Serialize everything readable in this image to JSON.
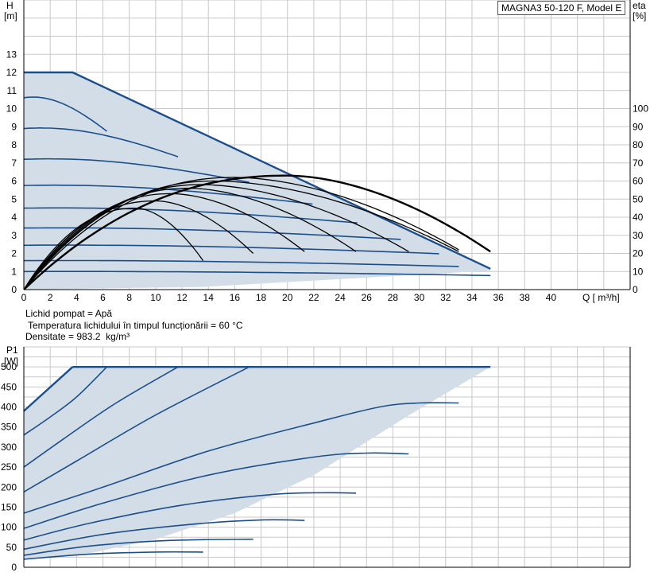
{
  "title": "MAGNA3 50-120 F, Model E",
  "info": {
    "liquid": "Lichid pompat = Apă",
    "temperature": "Temperatura lichidului în timpul funcționării = 60 °C",
    "density": "Densitate = 983.2  kg/m³"
  },
  "colors": {
    "fill": "#d3dde8",
    "curve": "#1c4f8a",
    "eta": "#000000",
    "grid": "#c8c8c8"
  },
  "chart_data": [
    {
      "type": "line",
      "name": "head-eta",
      "xlabel": "Q [ m³/h]",
      "ylabel_top": "H",
      "ylabel_unit": "[m]",
      "y2label_top": "eta",
      "y2label_unit": "[%]",
      "xlim": [
        0,
        46
      ],
      "ylim": [
        0,
        16
      ],
      "y2lim": [
        0,
        160
      ],
      "x_ticks": [
        0,
        2,
        4,
        6,
        8,
        10,
        12,
        14,
        16,
        18,
        20,
        22,
        24,
        26,
        28,
        30,
        32,
        34,
        36,
        38,
        40
      ],
      "y_ticks": [
        0,
        1,
        2,
        3,
        4,
        5,
        6,
        7,
        8,
        9,
        10,
        11,
        12,
        13
      ],
      "y2_ticks": [
        0,
        10,
        20,
        30,
        40,
        50,
        60,
        70,
        80,
        90,
        100
      ],
      "envelope": [
        [
          0,
          12
        ],
        [
          3.7,
          12
        ],
        [
          35.4,
          1.15
        ],
        [
          35.4,
          1.05
        ],
        [
          13.6,
          0.15
        ],
        [
          0,
          0
        ]
      ],
      "head_curves": [
        {
          "h0": 12.0,
          "qmax": 3.7
        },
        {
          "h0": 10.6,
          "qmax": 6.3
        },
        {
          "h0": 8.9,
          "qmax": 11.7
        },
        {
          "h0": 7.2,
          "qmax": 17.1
        },
        {
          "h0": 5.75,
          "qmax": 21.9
        },
        {
          "h0": 4.5,
          "qmax": 25.3
        },
        {
          "h0": 3.4,
          "qmax": 28.6
        },
        {
          "h0": 2.45,
          "qmax": 31.5
        },
        {
          "h0": 1.6,
          "qmax": 33.0
        },
        {
          "h0": 1.0,
          "qmax": 35.4
        }
      ],
      "eta_curves": [
        {
          "peak_q": 8.5,
          "peak": 45,
          "end_q": 13.6,
          "end": 16
        },
        {
          "peak_q": 10.0,
          "peak": 49,
          "end_q": 17.4,
          "end": 20
        },
        {
          "peak_q": 11.2,
          "peak": 53,
          "end_q": 21.3,
          "end": 21
        },
        {
          "peak_q": 12.5,
          "peak": 56,
          "end_q": 25.2,
          "end": 21
        },
        {
          "peak_q": 13.5,
          "peak": 58,
          "end_q": 29.2,
          "end": 21
        },
        {
          "peak_q": 14.5,
          "peak": 60,
          "end_q": 33.0,
          "end": 21
        },
        {
          "peak_q": 16.0,
          "peak": 62,
          "end_q": 33.0,
          "end": 22
        },
        {
          "peak_q": 20.0,
          "peak": 63,
          "end_q": 35.4,
          "end": 21,
          "bold": true
        }
      ]
    },
    {
      "type": "line",
      "name": "power",
      "ylabel_top": "P1",
      "ylabel_unit": "[W]",
      "xlim": [
        0,
        46
      ],
      "ylim": [
        0,
        550
      ],
      "y_ticks": [
        0,
        50,
        100,
        150,
        200,
        250,
        300,
        350,
        400,
        450,
        500
      ],
      "envelope": [
        [
          0,
          390
        ],
        [
          3.7,
          500
        ],
        [
          35.4,
          500
        ],
        [
          29,
          375
        ],
        [
          22,
          230
        ],
        [
          16,
          135
        ],
        [
          10,
          70
        ],
        [
          5,
          35
        ],
        [
          0,
          18
        ]
      ],
      "power_curves": [
        {
          "points": [
            [
              0,
              390
            ],
            [
              3.7,
              500
            ]
          ]
        },
        {
          "points": [
            [
              0,
              330
            ],
            [
              2,
              375
            ],
            [
              4,
              425
            ],
            [
              6.3,
              500
            ]
          ]
        },
        {
          "points": [
            [
              0,
              250
            ],
            [
              3,
              320
            ],
            [
              7,
              410
            ],
            [
              11.7,
              500
            ]
          ]
        },
        {
          "points": [
            [
              0,
              188
            ],
            [
              4,
              265
            ],
            [
              10,
              380
            ],
            [
              17.1,
              500
            ]
          ]
        },
        {
          "points": [
            [
              0,
              135
            ],
            [
              6,
              200
            ],
            [
              14,
              290
            ],
            [
              22,
              360
            ],
            [
              27,
              400
            ],
            [
              30,
              410
            ],
            [
              33.0,
              410
            ]
          ]
        },
        {
          "points": [
            [
              0,
              97
            ],
            [
              6,
              160
            ],
            [
              14,
              230
            ],
            [
              22,
              275
            ],
            [
              26,
              285
            ],
            [
              29.2,
              283
            ]
          ]
        },
        {
          "points": [
            [
              0,
              68
            ],
            [
              5,
              110
            ],
            [
              12,
              155
            ],
            [
              19,
              182
            ],
            [
              23,
              186
            ],
            [
              25.2,
              185
            ]
          ]
        },
        {
          "points": [
            [
              0,
              45
            ],
            [
              6,
              82
            ],
            [
              13,
              108
            ],
            [
              18,
              118
            ],
            [
              21.3,
              117
            ]
          ]
        },
        {
          "points": [
            [
              0,
              30
            ],
            [
              5,
              53
            ],
            [
              11,
              67
            ],
            [
              17.4,
              70
            ]
          ]
        },
        {
          "points": [
            [
              0,
              20
            ],
            [
              5,
              33
            ],
            [
              10,
              38
            ],
            [
              13.6,
              38
            ]
          ]
        }
      ],
      "top_line": [
        [
          3.7,
          500
        ],
        [
          35.4,
          500
        ]
      ]
    }
  ]
}
